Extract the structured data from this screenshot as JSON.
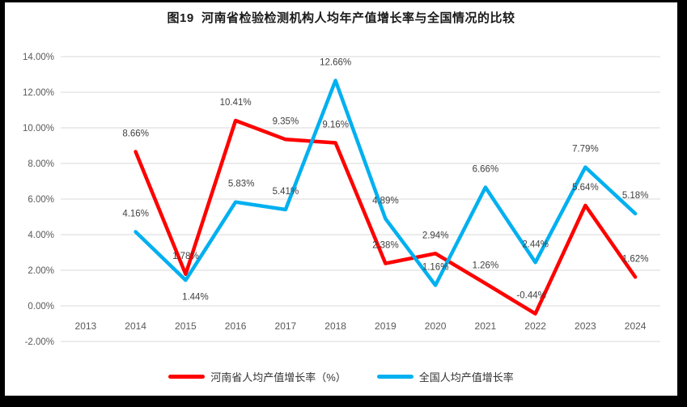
{
  "window": {
    "frame_color": "#000000",
    "surface_color": "#FFFFFF"
  },
  "chart_data": {
    "type": "line",
    "title": "图19  河南省检验检测机构人均年产值增长率与全国情况的比较",
    "categories": [
      "2013",
      "2014",
      "2015",
      "2016",
      "2017",
      "2018",
      "2019",
      "2020",
      "2021",
      "2022",
      "2023",
      "2024"
    ],
    "series": [
      {
        "name": "河南省人均产值增长率（%）",
        "color": "#FF0000",
        "values": [
          null,
          8.66,
          1.78,
          10.41,
          9.35,
          9.16,
          2.38,
          2.94,
          1.26,
          -0.44,
          5.64,
          1.62
        ],
        "labels": [
          null,
          "8.66%",
          "1.78%",
          "10.41%",
          "9.35%",
          "9.16%",
          "2.38%",
          "2.94%",
          "1.26%",
          "-0.44%",
          "5.64%",
          "1.62%"
        ]
      },
      {
        "name": "全国人均产值增长率",
        "color": "#00B0F0",
        "values": [
          null,
          4.16,
          1.44,
          5.83,
          5.41,
          12.66,
          4.89,
          1.16,
          6.66,
          2.44,
          7.79,
          5.18
        ],
        "labels": [
          null,
          "4.16%",
          "1.44%",
          "5.83%",
          "5.41%",
          "12.66%",
          "4.89%",
          "1.16%",
          "6.66%",
          "2.44%",
          "7.79%",
          "5.18%"
        ]
      }
    ],
    "y_axis": {
      "min": -2,
      "max": 14,
      "step": 2,
      "tick_values": [
        14,
        12,
        10,
        8,
        6,
        4,
        2,
        0,
        -2
      ],
      "tick_labels": [
        "14.00%",
        "12.00%",
        "10.00%",
        "8.00%",
        "6.00%",
        "4.00%",
        "2.00%",
        "0.00%",
        "-2.00%"
      ]
    },
    "grid": true,
    "gridline_color": "#D9D9D9",
    "axis_text_color": "#595959",
    "data_label_color": "#404040",
    "legend_position": "bottom",
    "data_labels": true,
    "label_overrides": [
      {
        "series": 1,
        "index": 2,
        "dx": 12,
        "below": true
      },
      {
        "series": 1,
        "index": 3,
        "dx": 7
      },
      {
        "series": 0,
        "index": 9,
        "dx": -5
      }
    ]
  }
}
